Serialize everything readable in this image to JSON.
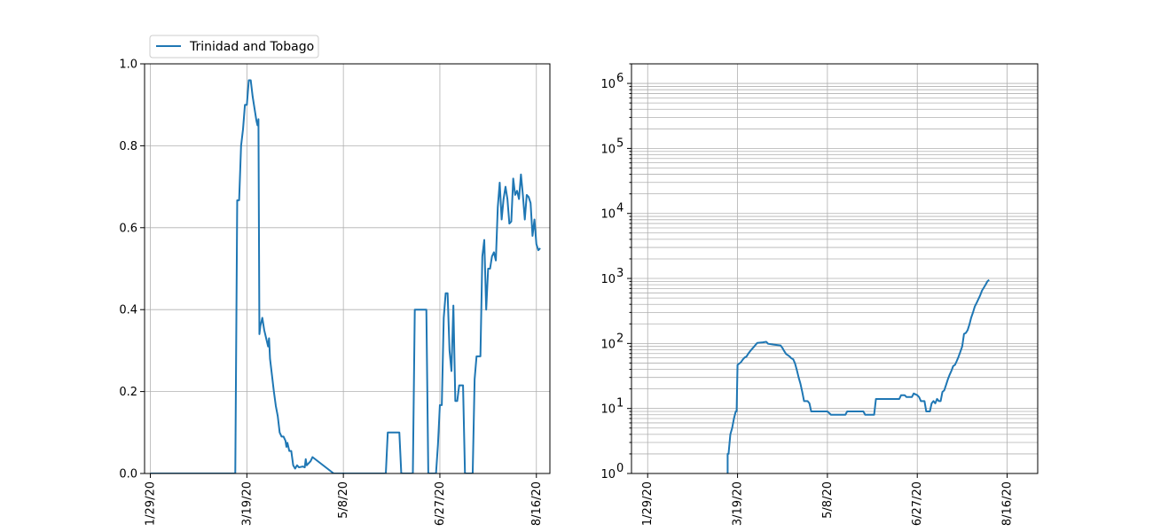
{
  "colors": {
    "series": "#1f77b4",
    "grid": "#b0b0b0"
  },
  "legend": {
    "label": "Trinidad and Tobago",
    "placement": "upper-left, above left plot"
  },
  "chart_data": [
    {
      "type": "line",
      "title": "",
      "xlabel": "",
      "ylabel": "",
      "grid": true,
      "xlim": [
        -3,
        207
      ],
      "ylim": [
        0,
        1
      ],
      "x_ticks": [
        {
          "day": 0,
          "label": "1/29/20"
        },
        {
          "day": 50,
          "label": "3/19/20"
        },
        {
          "day": 100,
          "label": "5/8/20"
        },
        {
          "day": 150,
          "label": "6/27/20"
        },
        {
          "day": 200,
          "label": "8/16/20"
        }
      ],
      "y_ticks": [
        {
          "value": 0,
          "label": "0.0"
        },
        {
          "value": 0.2,
          "label": "0.2"
        },
        {
          "value": 0.4,
          "label": "0.4"
        },
        {
          "value": 0.6,
          "label": "0.6"
        },
        {
          "value": 0.8,
          "label": "0.8"
        },
        {
          "value": 1.0,
          "label": "1.0"
        }
      ],
      "series": [
        {
          "name": "Trinidad and Tobago",
          "points": [
            [
              0,
              0
            ],
            [
              44,
              0
            ],
            [
              45,
              0.667
            ],
            [
              46,
              0.667
            ],
            [
              47,
              0.8
            ],
            [
              48,
              0.84
            ],
            [
              49,
              0.9
            ],
            [
              50,
              0.9
            ],
            [
              51,
              0.96
            ],
            [
              52,
              0.96
            ],
            [
              53,
              0.92
            ],
            [
              54,
              0.89
            ],
            [
              55,
              0.86
            ],
            [
              55.5,
              0.85
            ],
            [
              56,
              0.865
            ],
            [
              56.5,
              0.34
            ],
            [
              57,
              0.36
            ],
            [
              58,
              0.38
            ],
            [
              59,
              0.35
            ],
            [
              60,
              0.33
            ],
            [
              61,
              0.31
            ],
            [
              61.5,
              0.33
            ],
            [
              62,
              0.28
            ],
            [
              63,
              0.24
            ],
            [
              64,
              0.2
            ],
            [
              65,
              0.165
            ],
            [
              66,
              0.14
            ],
            [
              67,
              0.1
            ],
            [
              68,
              0.09
            ],
            [
              69,
              0.09
            ],
            [
              70,
              0.08
            ],
            [
              70.5,
              0.065
            ],
            [
              71,
              0.075
            ],
            [
              72,
              0.055
            ],
            [
              73,
              0.055
            ],
            [
              74,
              0.02
            ],
            [
              75,
              0.012
            ],
            [
              76,
              0.02
            ],
            [
              77,
              0.015
            ],
            [
              79,
              0.017
            ],
            [
              80,
              0.015
            ],
            [
              80.5,
              0.035
            ],
            [
              81,
              0.02
            ],
            [
              83,
              0.03
            ],
            [
              84,
              0.04
            ],
            [
              95,
              0
            ],
            [
              122,
              0
            ],
            [
              123,
              0.1
            ],
            [
              129,
              0.1
            ],
            [
              130,
              0
            ],
            [
              136,
              0
            ],
            [
              137,
              0.4
            ],
            [
              143,
              0.4
            ],
            [
              144,
              0
            ],
            [
              148,
              0
            ],
            [
              149,
              0.07
            ],
            [
              150,
              0.167
            ],
            [
              151,
              0.167
            ],
            [
              152,
              0.38
            ],
            [
              153,
              0.44
            ],
            [
              154,
              0.44
            ],
            [
              155,
              0.3
            ],
            [
              156,
              0.25
            ],
            [
              157,
              0.41
            ],
            [
              158,
              0.177
            ],
            [
              159,
              0.177
            ],
            [
              160,
              0.215
            ],
            [
              162,
              0.215
            ],
            [
              163,
              0
            ],
            [
              167,
              0
            ],
            [
              168,
              0.23
            ],
            [
              169,
              0.286
            ],
            [
              171,
              0.286
            ],
            [
              172,
              0.53
            ],
            [
              173,
              0.57
            ],
            [
              174,
              0.4
            ],
            [
              175,
              0.5
            ],
            [
              176,
              0.5
            ],
            [
              177,
              0.53
            ],
            [
              178,
              0.54
            ],
            [
              179,
              0.52
            ],
            [
              180,
              0.65
            ],
            [
              181,
              0.71
            ],
            [
              182,
              0.62
            ],
            [
              183,
              0.67
            ],
            [
              184,
              0.7
            ],
            [
              185,
              0.67
            ],
            [
              186,
              0.61
            ],
            [
              187,
              0.615
            ],
            [
              188,
              0.72
            ],
            [
              189,
              0.68
            ],
            [
              190,
              0.69
            ],
            [
              191,
              0.67
            ],
            [
              192,
              0.73
            ],
            [
              193,
              0.68
            ],
            [
              194,
              0.62
            ],
            [
              195,
              0.68
            ],
            [
              196,
              0.675
            ],
            [
              197,
              0.66
            ],
            [
              198,
              0.58
            ],
            [
              199,
              0.62
            ],
            [
              200,
              0.56
            ],
            [
              201,
              0.545
            ],
            [
              202,
              0.55
            ]
          ]
        }
      ]
    },
    {
      "type": "line",
      "title": "",
      "xlabel": "",
      "ylabel": "",
      "grid": true,
      "yscale": "log",
      "xlim": [
        -9,
        217
      ],
      "ylim": [
        1,
        2000000
      ],
      "x_ticks": [
        {
          "day": 0,
          "label": "1/29/20"
        },
        {
          "day": 50,
          "label": "3/19/20"
        },
        {
          "day": 100,
          "label": "5/8/20"
        },
        {
          "day": 150,
          "label": "6/27/20"
        },
        {
          "day": 200,
          "label": "8/16/20"
        }
      ],
      "y_ticks": [
        {
          "exp": 0,
          "base": "10",
          "sup": "0"
        },
        {
          "exp": 1,
          "base": "10",
          "sup": "1"
        },
        {
          "exp": 2,
          "base": "10",
          "sup": "2"
        },
        {
          "exp": 3,
          "base": "10",
          "sup": "3"
        },
        {
          "exp": 4,
          "base": "10",
          "sup": "4"
        },
        {
          "exp": 5,
          "base": "10",
          "sup": "5"
        },
        {
          "exp": 6,
          "base": "10",
          "sup": "6"
        }
      ],
      "series": [
        {
          "name": "Trinidad and Tobago",
          "points": [
            [
              44.5,
              0.5
            ],
            [
              44.5,
              2
            ],
            [
              45,
              2
            ],
            [
              46,
              4
            ],
            [
              47,
              5
            ],
            [
              48,
              7
            ],
            [
              49,
              9
            ],
            [
              49.5,
              9
            ],
            [
              50,
              47
            ],
            [
              51,
              49
            ],
            [
              52,
              52
            ],
            [
              53,
              57
            ],
            [
              54,
              61
            ],
            [
              55,
              63
            ],
            [
              56,
              70
            ],
            [
              57,
              76
            ],
            [
              58,
              82
            ],
            [
              59,
              88
            ],
            [
              60,
              95
            ],
            [
              61,
              102
            ],
            [
              64,
              104
            ],
            [
              66,
              106
            ],
            [
              67,
              99
            ],
            [
              70,
              96
            ],
            [
              74,
              93
            ],
            [
              75,
              85
            ],
            [
              76,
              76
            ],
            [
              77,
              69
            ],
            [
              79,
              63
            ],
            [
              80,
              59
            ],
            [
              81,
              57
            ],
            [
              82,
              49
            ],
            [
              83,
              39
            ],
            [
              84,
              30
            ],
            [
              85,
              24
            ],
            [
              86,
              18
            ],
            [
              87,
              13
            ],
            [
              89,
              13
            ],
            [
              90,
              12
            ],
            [
              91,
              9
            ],
            [
              100,
              9
            ],
            [
              102,
              8
            ],
            [
              110,
              8
            ],
            [
              111,
              9
            ],
            [
              120,
              9
            ],
            [
              121,
              8
            ],
            [
              126,
              8
            ],
            [
              127,
              14
            ],
            [
              140,
              14
            ],
            [
              141,
              16
            ],
            [
              143,
              16
            ],
            [
              144,
              15
            ],
            [
              147,
              15
            ],
            [
              148,
              17
            ],
            [
              150,
              16
            ],
            [
              151,
              15
            ],
            [
              152,
              13
            ],
            [
              154,
              13
            ],
            [
              155,
              9
            ],
            [
              157,
              9
            ],
            [
              158,
              12
            ],
            [
              159,
              13
            ],
            [
              160,
              12
            ],
            [
              161,
              14
            ],
            [
              162,
              13
            ],
            [
              163,
              13
            ],
            [
              164,
              18
            ],
            [
              165,
              19
            ],
            [
              166,
              23
            ],
            [
              167,
              28
            ],
            [
              168,
              33
            ],
            [
              169,
              38
            ],
            [
              170,
              45
            ],
            [
              171,
              47
            ],
            [
              172,
              54
            ],
            [
              173,
              63
            ],
            [
              174,
              75
            ],
            [
              175,
              90
            ],
            [
              176,
              140
            ],
            [
              177,
              145
            ],
            [
              178,
              160
            ],
            [
              179,
              195
            ],
            [
              180,
              250
            ],
            [
              181,
              300
            ],
            [
              182,
              370
            ],
            [
              183,
              420
            ],
            [
              184,
              480
            ],
            [
              185,
              550
            ],
            [
              186,
              650
            ],
            [
              187,
              720
            ],
            [
              188,
              800
            ],
            [
              189,
              900
            ],
            [
              190,
              950
            ]
          ]
        }
      ]
    }
  ]
}
